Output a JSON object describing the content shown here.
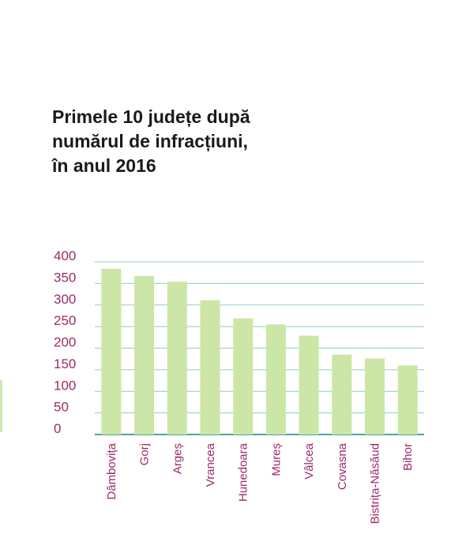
{
  "chart_data": {
    "type": "bar",
    "title_lines": [
      "Primele 10 județe după",
      "numărul de infracțiuni,",
      "în anul 2016"
    ],
    "categories": [
      "Dâmbovița",
      "Gorj",
      "Argeș",
      "Vrancea",
      "Hunedoara",
      "Mureș",
      "Vâlcea",
      "Covasna",
      "Bistrița-Năsăud",
      "Bihor"
    ],
    "values": [
      384,
      367,
      354,
      311,
      269,
      255,
      229,
      185,
      176,
      160
    ],
    "y_ticks": [
      "0",
      "50",
      "100",
      "150",
      "200",
      "250",
      "300",
      "350",
      "400"
    ],
    "ylim": [
      0,
      400
    ],
    "grid": true,
    "colors": {
      "bar": "#cbe6a6",
      "grid": "#8ccfc2",
      "baseline": "#4aa79a",
      "label": "#9a2a67",
      "title": "#1a1a1a"
    }
  }
}
